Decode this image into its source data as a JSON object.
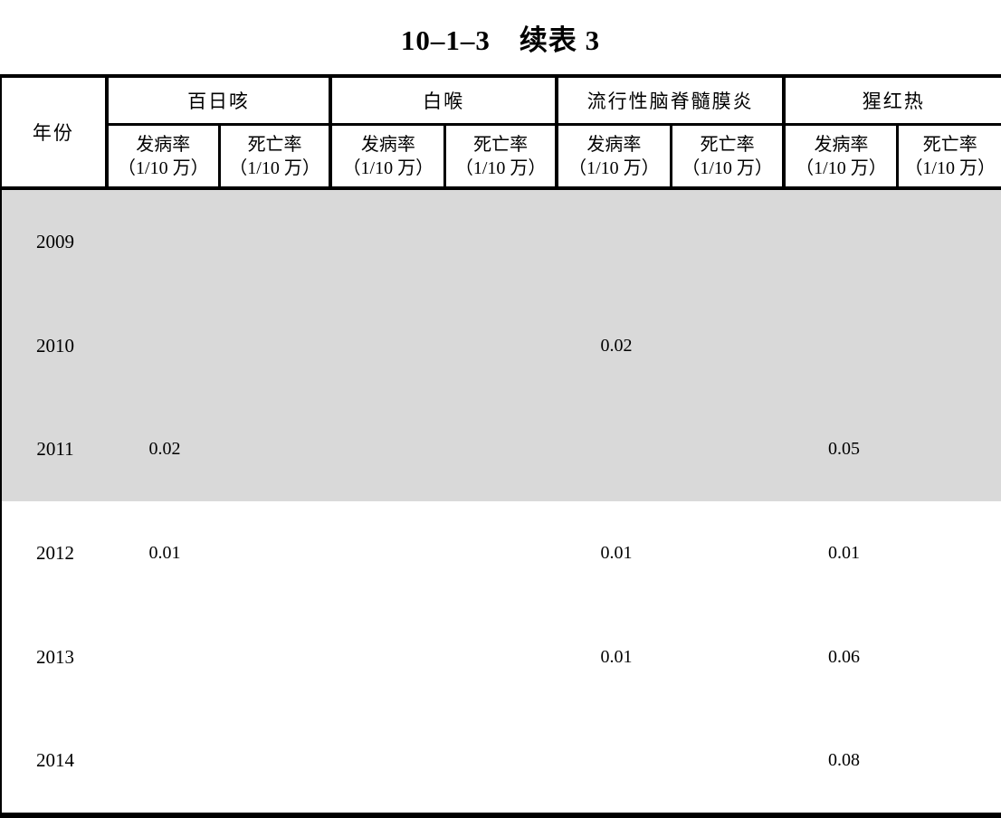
{
  "page": {
    "title": "10–1–3　续表 3"
  },
  "table": {
    "year_header": "年份",
    "groups": [
      {
        "label": "百日咳"
      },
      {
        "label": "白喉"
      },
      {
        "label": "流行性脑脊髓膜炎"
      },
      {
        "label": "猩红热"
      }
    ],
    "subheaders": {
      "incidence": "发病率",
      "mortality": "死亡率",
      "per_100k": "（1/10 万）"
    },
    "colors": {
      "shaded_row_bg": "#d9d9d9",
      "border": "#000000"
    },
    "chart_data": {
      "type": "table",
      "title": "10–1–3　续表 3",
      "unit": "1/10万",
      "columns": [
        "百日咳 发病率",
        "百日咳 死亡率",
        "白喉 发病率",
        "白喉 死亡率",
        "流行性脑脊髓膜炎 发病率",
        "流行性脑脊髓膜炎 死亡率",
        "猩红热 发病率",
        "猩红热 死亡率"
      ]
    },
    "rows": [
      {
        "year": "2009",
        "shaded": true,
        "values": [
          "",
          "",
          "",
          "",
          "",
          "",
          "",
          ""
        ]
      },
      {
        "year": "2010",
        "shaded": true,
        "values": [
          "",
          "",
          "",
          "",
          "0.02",
          "",
          "",
          ""
        ]
      },
      {
        "year": "2011",
        "shaded": true,
        "values": [
          "0.02",
          "",
          "",
          "",
          "",
          "",
          "0.05",
          ""
        ]
      },
      {
        "year": "2012",
        "shaded": false,
        "values": [
          "0.01",
          "",
          "",
          "",
          "0.01",
          "",
          "0.01",
          ""
        ]
      },
      {
        "year": "2013",
        "shaded": false,
        "values": [
          "",
          "",
          "",
          "",
          "0.01",
          "",
          "0.06",
          ""
        ]
      },
      {
        "year": "2014",
        "shaded": false,
        "values": [
          "",
          "",
          "",
          "",
          "",
          "",
          "0.08",
          ""
        ]
      }
    ]
  }
}
